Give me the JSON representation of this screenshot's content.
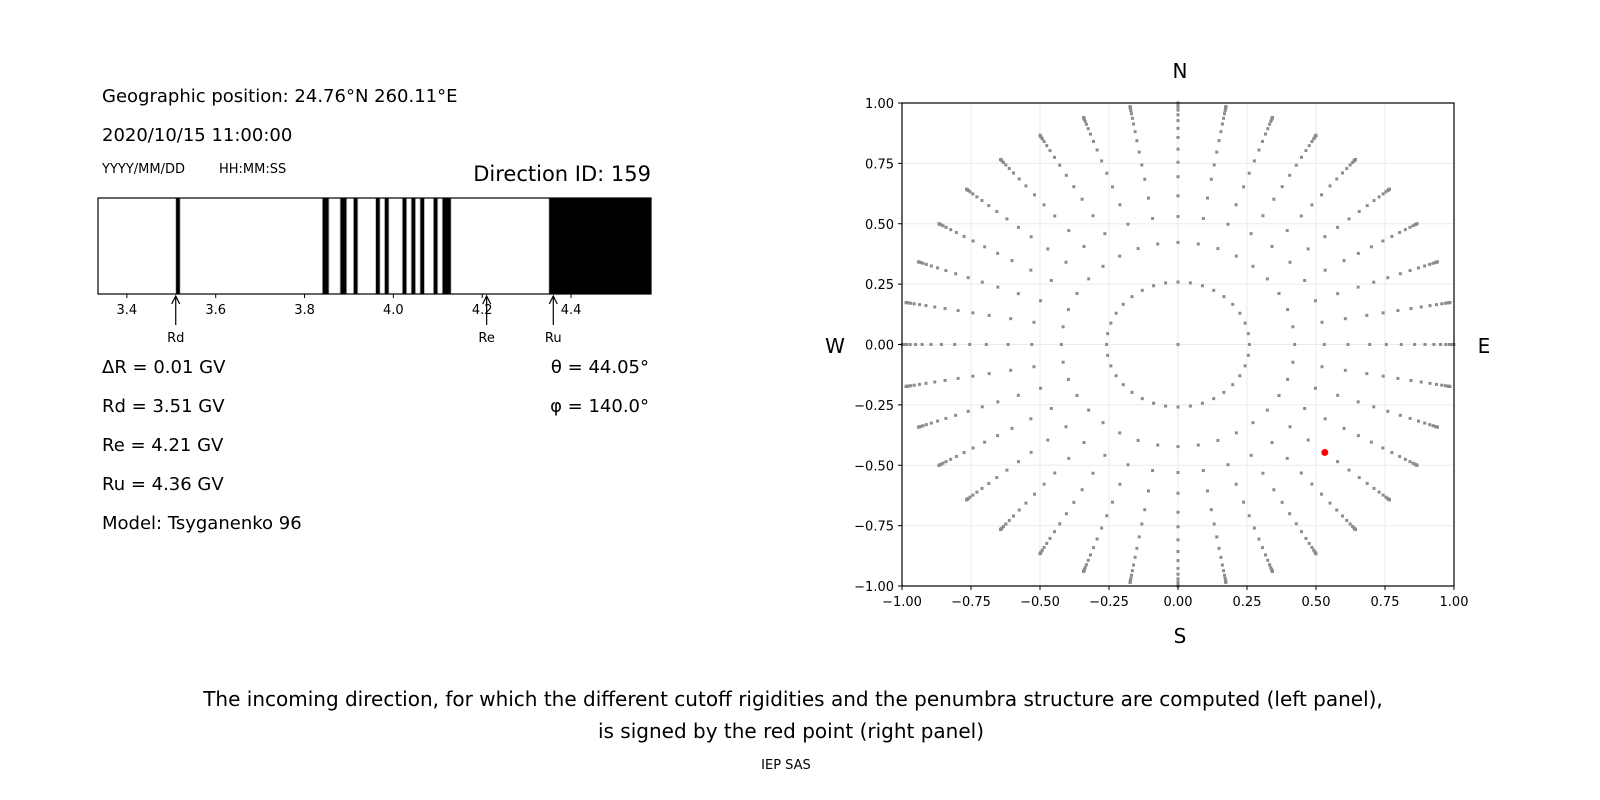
{
  "left_panel": {
    "geo_position": "Geographic position: 24.76°N 260.11°E",
    "datetime": "2020/10/15 11:00:00",
    "date_format": "YYYY/MM/DD",
    "time_format": "HH:MM:SS",
    "direction_id": "Direction ID: 159",
    "delta_r": "ΔR = 0.01 GV",
    "rd": "Rd = 3.51 GV",
    "re": "Re = 4.21 GV",
    "ru": "Ru = 4.36 GV",
    "model": "Model: Tsyganenko 96",
    "theta": "θ = 44.05°",
    "phi": "φ = 140.0°"
  },
  "chart_data": [
    {
      "type": "penumbra-bar",
      "xlim": [
        3.335,
        4.58
      ],
      "ticks": [
        3.4,
        3.6,
        3.8,
        4.0,
        4.2,
        4.4
      ],
      "tick_labels": [
        "3.4",
        "3.6",
        "3.8",
        "4.0",
        "4.2",
        "4.4"
      ],
      "forbidden_intervals_GV": [
        [
          3.51,
          3.52
        ],
        [
          3.84,
          3.855
        ],
        [
          3.88,
          3.895
        ],
        [
          3.91,
          3.92
        ],
        [
          3.96,
          3.97
        ],
        [
          3.98,
          3.99
        ],
        [
          4.02,
          4.03
        ],
        [
          4.04,
          4.05
        ],
        [
          4.06,
          4.07
        ],
        [
          4.09,
          4.1
        ],
        [
          4.11,
          4.13
        ],
        [
          4.35,
          4.58
        ]
      ],
      "markers": [
        {
          "label": "Rd",
          "value": 3.51
        },
        {
          "label": "Re",
          "value": 4.21
        },
        {
          "label": "Ru",
          "value": 4.36
        }
      ],
      "colors": {
        "forbidden": "#000000",
        "allowed": "#ffffff"
      }
    },
    {
      "type": "scatter",
      "xlim": [
        -1,
        1
      ],
      "ylim": [
        -1,
        1
      ],
      "ticks": [
        -1.0,
        -0.75,
        -0.5,
        -0.25,
        0.0,
        0.25,
        0.5,
        0.75,
        1.0
      ],
      "tick_labels": [
        "−1.00",
        "−0.75",
        "−0.50",
        "−0.25",
        "0.00",
        "0.25",
        "0.50",
        "0.75",
        "1.00"
      ],
      "grid": true,
      "compass": {
        "north": "N",
        "south": "S",
        "west": "W",
        "east": "E"
      },
      "grid_directions": {
        "azimuth_step_deg": 10,
        "zenith_deg": [
          0,
          15,
          25,
          32,
          38,
          44,
          49,
          54,
          59,
          63.5,
          68,
          72,
          76,
          79.5,
          82.5,
          85,
          87,
          88.5,
          89.5,
          90
        ]
      },
      "selected_point": {
        "x": 0.532,
        "y": -0.447
      },
      "colors": {
        "points": "#8c8c8c",
        "selected": "#ff0000",
        "grid": "#ebebeb"
      }
    }
  ],
  "caption": {
    "line1": "The incoming direction, for which the different cutoff rigidities and the penumbra structure are computed (left panel),",
    "line2": "is signed by the red point (right panel)"
  },
  "footer": "IEP SAS"
}
